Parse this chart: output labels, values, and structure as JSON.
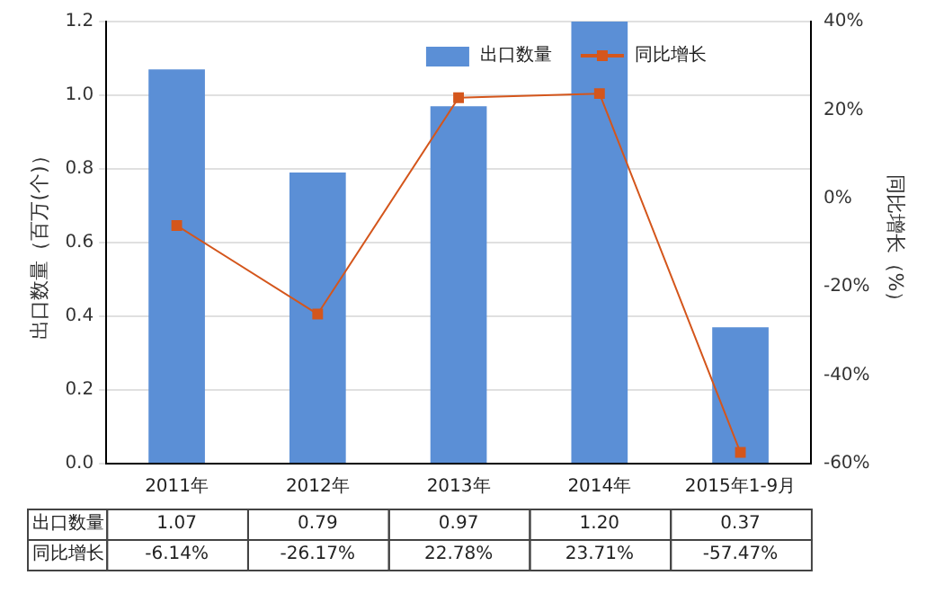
{
  "chart_data": {
    "type": "bar",
    "categories": [
      "2011年",
      "2012年",
      "2013年",
      "2014年",
      "2015年1-9月"
    ],
    "ylabel": "出口数量（百万(个)）",
    "y2label": "同比增长（%）",
    "series": [
      {
        "name": "出口数量",
        "color": "#5b8fd6",
        "values": [
          1.07,
          0.79,
          0.97,
          1.2,
          0.37
        ],
        "value_labels": [
          "1.07",
          "0.79",
          "0.97",
          "1.20",
          "0.37"
        ]
      },
      {
        "name": "同比增长",
        "type": "line",
        "axis": "y2",
        "color": "#d4561c",
        "values": [
          -6.14,
          -26.17,
          22.78,
          23.71,
          -57.47
        ],
        "value_labels": [
          "-6.14%",
          "-26.17%",
          "22.78%",
          "23.71%",
          "-57.47%"
        ]
      }
    ],
    "ylim": [
      0,
      1.2
    ],
    "yticks": [
      {
        "value": 0,
        "label": "0.0"
      },
      {
        "value": 0.2,
        "label": "0.2"
      },
      {
        "value": 0.4,
        "label": "0.4"
      },
      {
        "value": 0.6,
        "label": "0.6"
      },
      {
        "value": 0.8,
        "label": "0.8"
      },
      {
        "value": 1,
        "label": "1.0"
      },
      {
        "value": 1.2,
        "label": "1.2"
      }
    ],
    "y2lim": [
      -60,
      40
    ],
    "y2ticks": [
      {
        "value": -60,
        "label": "-60%"
      },
      {
        "value": -40,
        "label": "-40%"
      },
      {
        "value": -20,
        "label": "-20%"
      },
      {
        "value": 0,
        "label": "0%"
      },
      {
        "value": 20,
        "label": "20%"
      },
      {
        "value": 40,
        "label": "40%"
      }
    ],
    "grid": "y",
    "legend": "top right",
    "marker": "square",
    "line_style": "solid"
  }
}
